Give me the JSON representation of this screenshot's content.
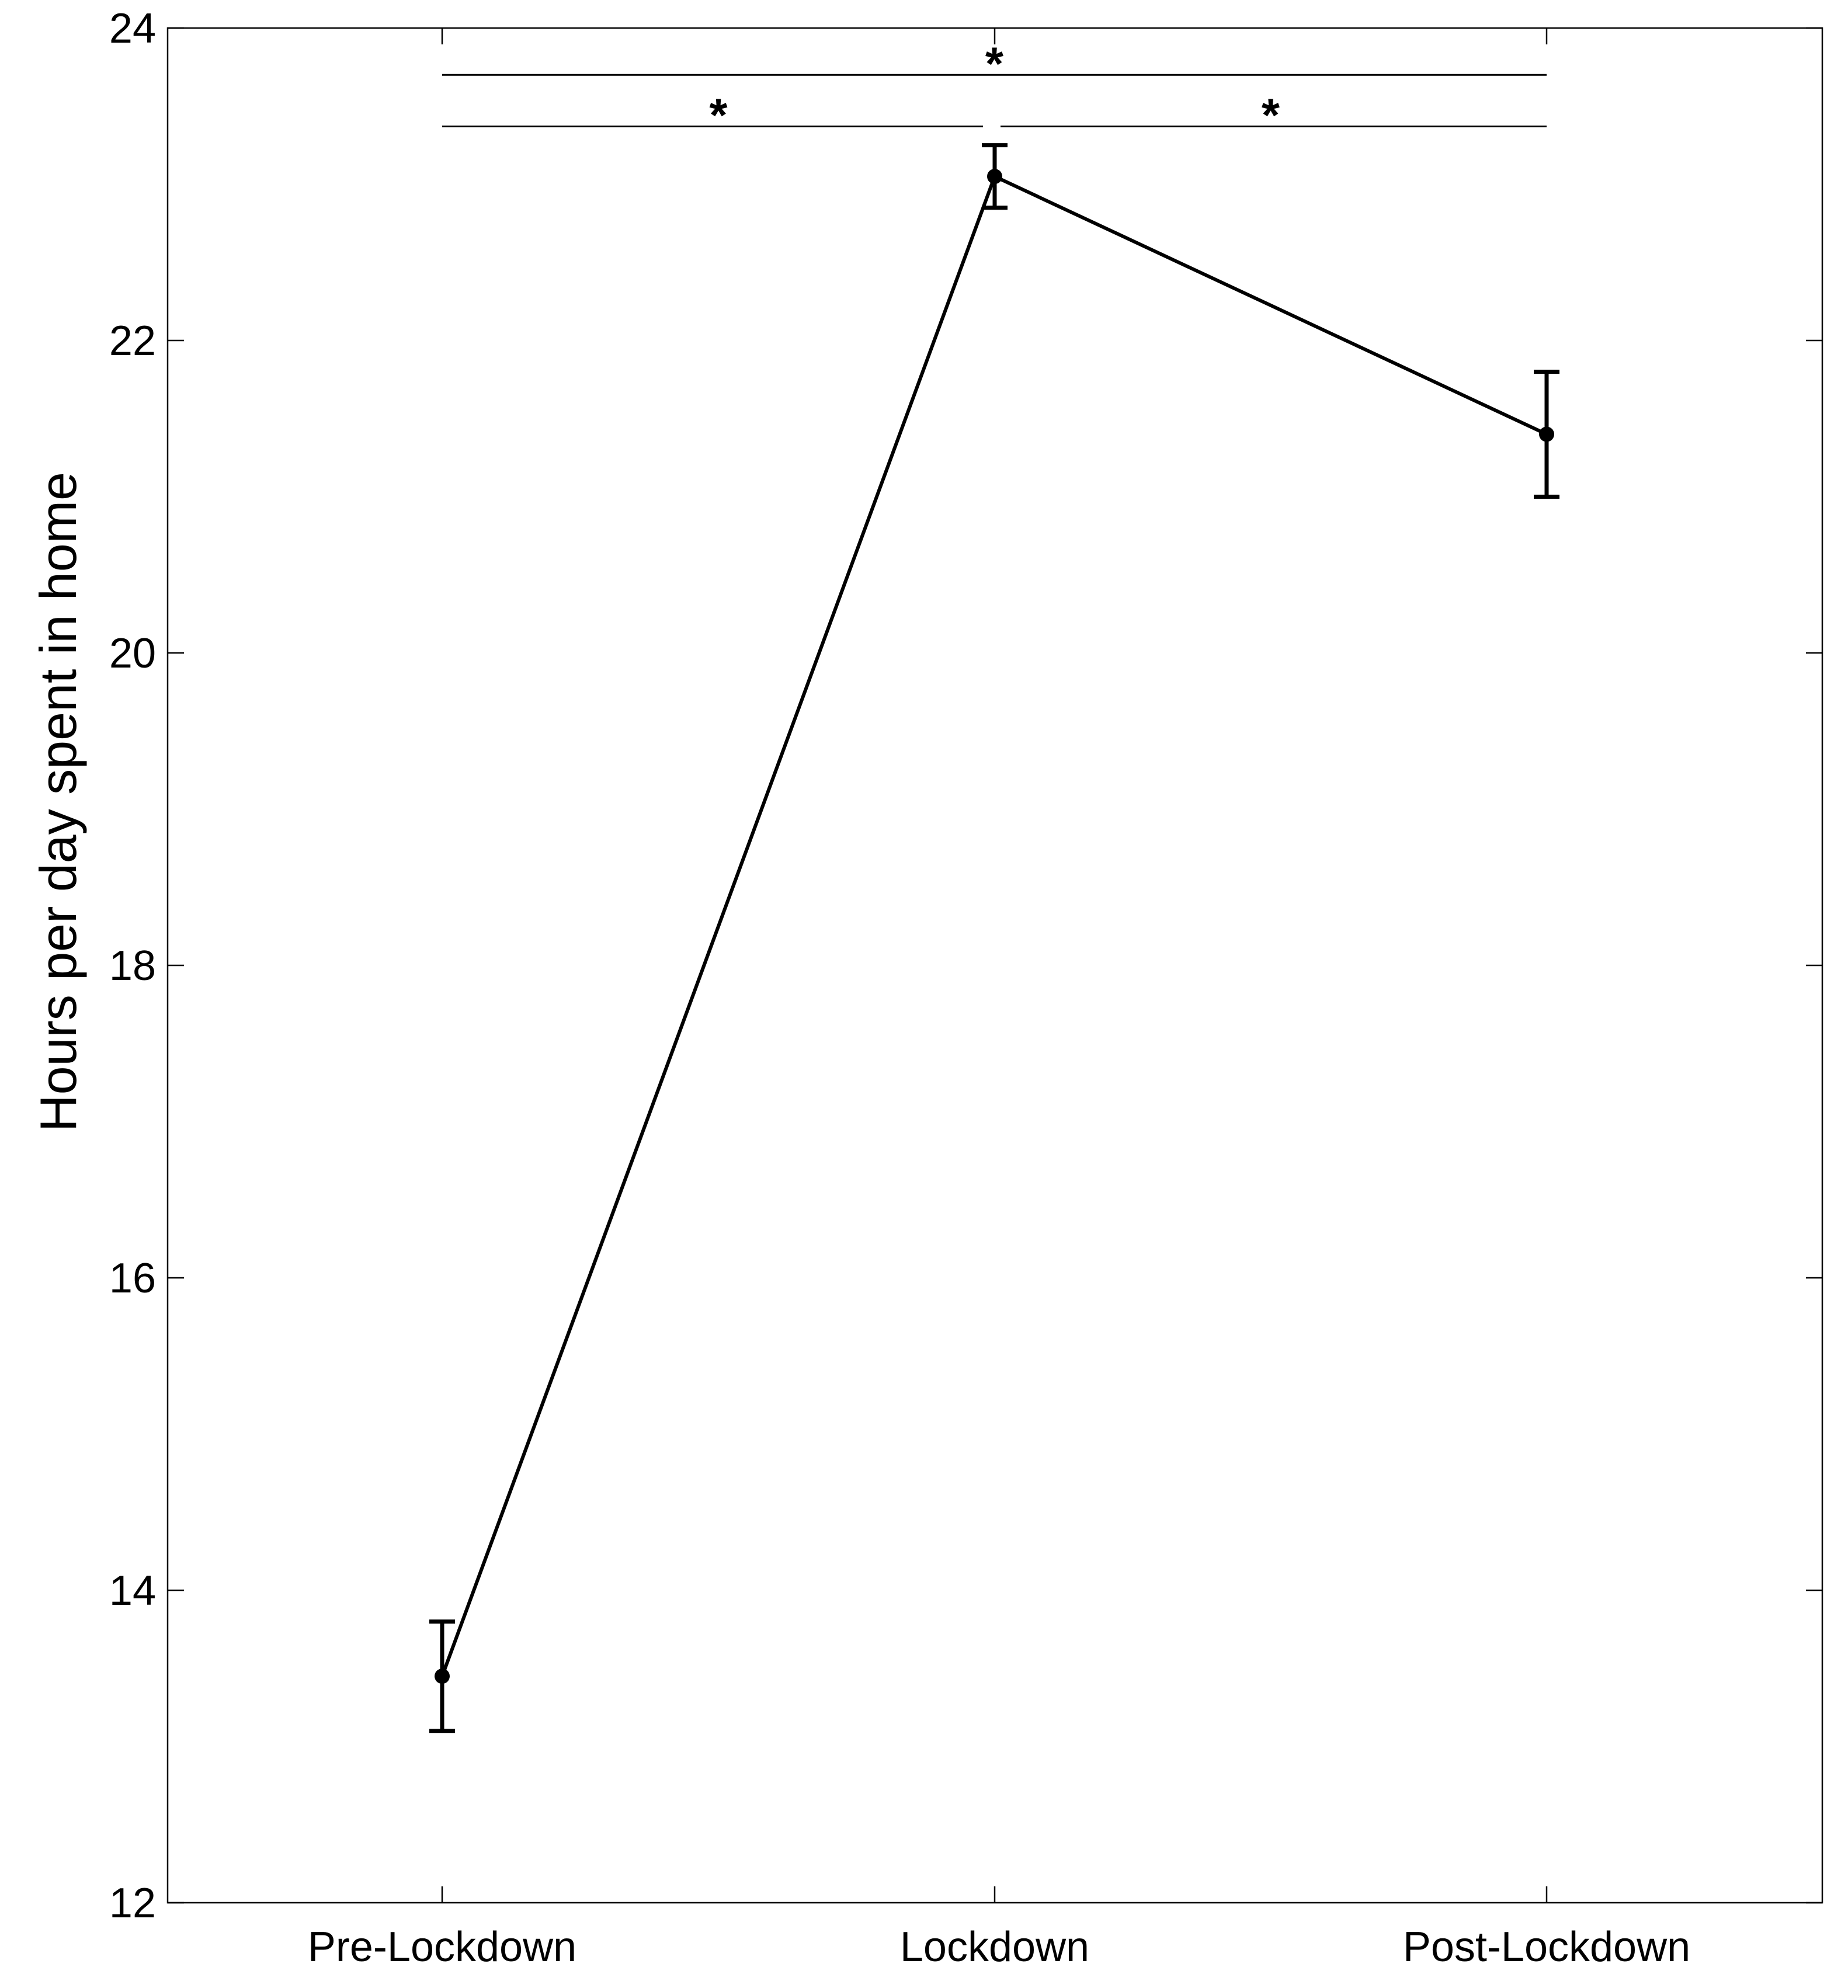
{
  "chart_data": {
    "type": "line",
    "title": "",
    "xlabel": "",
    "ylabel": "Hours per day spent in home",
    "categories": [
      "Pre-Lockdown",
      "Lockdown",
      "Post-Lockdown"
    ],
    "series": [
      {
        "values": [
          13.45,
          23.05,
          21.4
        ],
        "error_low": [
          13.1,
          22.85,
          21.0
        ],
        "error_high": [
          13.8,
          23.25,
          21.8
        ]
      }
    ],
    "ylim": [
      12,
      24
    ],
    "yticks": [
      12,
      14,
      16,
      18,
      20,
      22,
      24
    ],
    "ytick_labels": [
      "12",
      "14",
      "16",
      "18",
      "20",
      "22",
      "24"
    ],
    "grid": false,
    "significance": [
      {
        "from": 0,
        "to": 2,
        "y": 23.7,
        "label": "*"
      },
      {
        "from": 0,
        "to": 1,
        "y": 23.37,
        "label": "*"
      },
      {
        "from": 1,
        "to": 2,
        "y": 23.37,
        "label": "*"
      }
    ]
  }
}
